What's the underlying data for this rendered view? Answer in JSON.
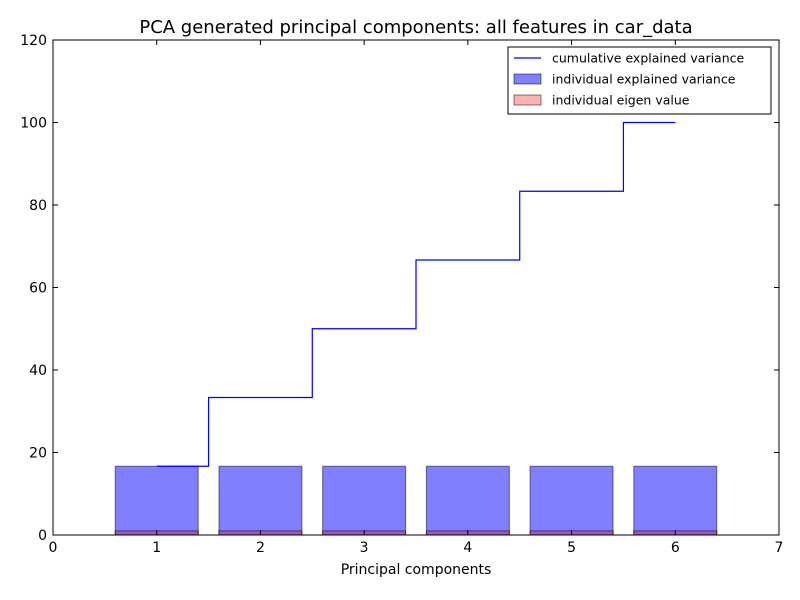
{
  "chart_data": {
    "type": "bar",
    "title": "PCA generated principal components: all features in car_data",
    "xlabel": "Principal components",
    "ylabel": "",
    "xlim": [
      0,
      7
    ],
    "ylim": [
      0,
      120
    ],
    "x_ticks": [
      0,
      1,
      2,
      3,
      4,
      5,
      6,
      7
    ],
    "y_ticks": [
      0,
      20,
      40,
      60,
      80,
      100,
      120
    ],
    "categories": [
      1,
      2,
      3,
      4,
      5,
      6
    ],
    "grid": false,
    "legend_position": "top-right",
    "series": [
      {
        "name": "cumulative explained variance",
        "kind": "step",
        "color": "#0000ff",
        "values": [
          16.67,
          33.33,
          50.0,
          66.67,
          83.33,
          100.0
        ]
      },
      {
        "name": "individual explained variance",
        "kind": "bar",
        "color": "#0000ff",
        "opacity": 0.5,
        "values": [
          16.67,
          16.67,
          16.67,
          16.67,
          16.67,
          16.67
        ]
      },
      {
        "name": "individual eigen value",
        "kind": "bar",
        "color": "#ff0000",
        "opacity": 0.3,
        "values": [
          1.0,
          1.0,
          1.0,
          1.0,
          1.0,
          1.0
        ]
      }
    ]
  }
}
